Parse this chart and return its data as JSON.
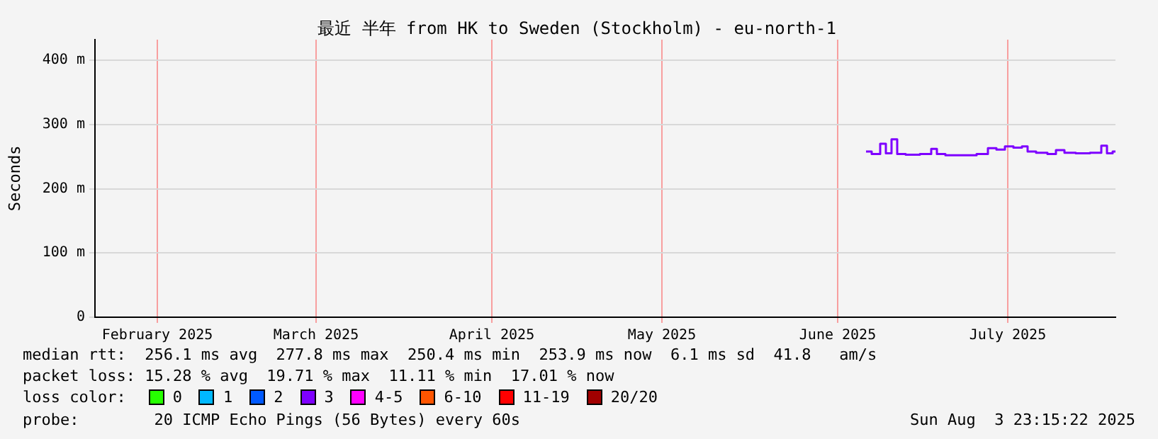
{
  "chart_data": {
    "type": "step",
    "title": "最近 半年 from HK to Sweden (Stockholm) - eu-north-1",
    "ylabel": "Seconds",
    "xlim": [
      "2025-02-04",
      "2025-08-03"
    ],
    "xticks": [
      {
        "value": "2025-02-15",
        "label": "February 2025"
      },
      {
        "value": "2025-03-15",
        "label": "March 2025"
      },
      {
        "value": "2025-04-15",
        "label": "April 2025"
      },
      {
        "value": "2025-05-15",
        "label": "May 2025"
      },
      {
        "value": "2025-06-15",
        "label": "June 2025"
      },
      {
        "value": "2025-07-15",
        "label": "July 2025"
      }
    ],
    "ylim": [
      0,
      432
    ],
    "yticks": [
      {
        "value": 0,
        "label": "0"
      },
      {
        "value": 100,
        "label": "100 m"
      },
      {
        "value": 200,
        "label": "200 m"
      },
      {
        "value": 300,
        "label": "300 m"
      },
      {
        "value": 400,
        "label": "400 m"
      }
    ],
    "grid": true,
    "legend": "bottom",
    "legend_title": "loss color:",
    "marker": "none",
    "x": [
      "2025-06-20",
      "2025-06-22",
      "2025-06-23",
      "2025-06-24",
      "2025-06-25",
      "2025-06-26",
      "2025-06-28",
      "2025-07-01",
      "2025-07-02",
      "2025-07-03",
      "2025-07-05",
      "2025-07-08",
      "2025-07-11",
      "2025-07-12",
      "2025-07-14",
      "2025-07-15",
      "2025-07-17",
      "2025-07-18",
      "2025-07-19",
      "2025-07-21",
      "2025-07-23",
      "2025-07-24",
      "2025-07-26",
      "2025-07-28",
      "2025-07-31",
      "2025-08-01",
      "2025-08-02",
      "2025-08-03"
    ],
    "series": [
      {
        "name": "0",
        "color": "#26ff00",
        "values": [
          null,
          null,
          null,
          null,
          null,
          null,
          null,
          null,
          null,
          null,
          null,
          null,
          null,
          null,
          null,
          null,
          null,
          null,
          null,
          null,
          null,
          null,
          null,
          null,
          null,
          null,
          null,
          null
        ]
      },
      {
        "name": "1",
        "color": "#00b8ff",
        "values": [
          null,
          null,
          null,
          null,
          null,
          null,
          null,
          null,
          null,
          null,
          null,
          null,
          null,
          null,
          null,
          null,
          null,
          null,
          null,
          null,
          null,
          null,
          null,
          null,
          null,
          null,
          null,
          null
        ]
      },
      {
        "name": "2",
        "color": "#0059ff",
        "values": [
          null,
          null,
          null,
          null,
          null,
          null,
          null,
          null,
          null,
          null,
          null,
          null,
          null,
          null,
          null,
          null,
          null,
          null,
          null,
          null,
          null,
          null,
          null,
          null,
          null,
          null,
          null,
          null
        ]
      },
      {
        "name": "3",
        "color": "#7e00ff",
        "values": [
          258,
          254,
          270,
          255,
          277,
          254,
          253,
          254,
          262,
          254,
          252,
          252,
          254,
          263,
          261,
          266,
          264,
          266,
          258,
          256,
          254,
          260,
          256,
          255,
          256,
          267,
          255,
          258
        ]
      },
      {
        "name": "4-5",
        "color": "#ff00fe",
        "values": [
          null,
          null,
          null,
          null,
          null,
          null,
          null,
          null,
          null,
          null,
          null,
          null,
          null,
          null,
          null,
          null,
          null,
          null,
          null,
          null,
          null,
          null,
          null,
          null,
          null,
          null,
          null,
          null
        ]
      },
      {
        "name": "6-10",
        "color": "#ff5500",
        "values": [
          null,
          null,
          null,
          null,
          null,
          null,
          null,
          null,
          null,
          null,
          null,
          null,
          null,
          null,
          null,
          null,
          null,
          null,
          null,
          null,
          null,
          null,
          null,
          null,
          null,
          null,
          null,
          null
        ]
      },
      {
        "name": "11-19",
        "color": "#ff0000",
        "values": [
          null,
          null,
          null,
          null,
          null,
          null,
          null,
          null,
          null,
          null,
          null,
          null,
          null,
          null,
          null,
          null,
          null,
          null,
          null,
          null,
          null,
          null,
          null,
          null,
          null,
          null,
          null,
          null
        ]
      },
      {
        "name": "20/20",
        "color": "#a10000",
        "values": [
          null,
          null,
          null,
          null,
          null,
          null,
          null,
          null,
          null,
          null,
          null,
          null,
          null,
          null,
          null,
          null,
          null,
          null,
          null,
          null,
          null,
          null,
          null,
          null,
          null,
          null,
          null,
          null
        ]
      }
    ],
    "annotations": [
      "median rtt:  256.1 ms avg  277.8 ms max  250.4 ms min  253.9 ms now  6.1 ms sd  41.8   am/s",
      "packet loss: 15.28 % avg  19.71 % max  11.11 % min  17.01 % now",
      "probe:        20 ICMP Echo Pings (56 Bytes) every 60s",
      "Sun Aug  3 23:15:22 2025"
    ]
  }
}
